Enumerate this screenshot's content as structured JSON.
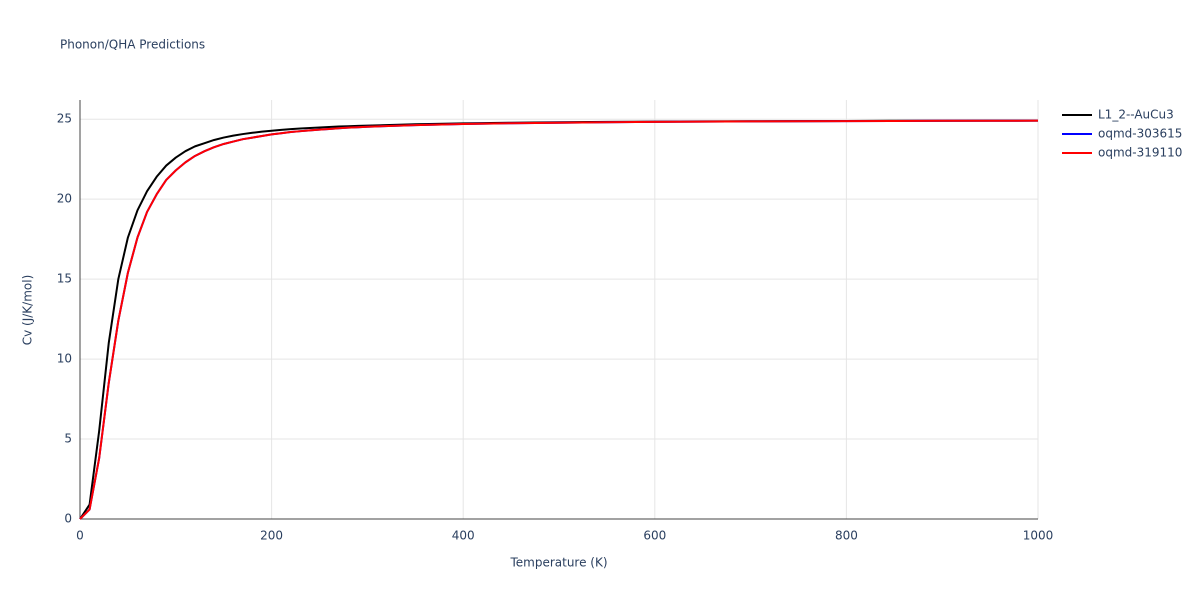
{
  "chart_data": {
    "type": "line",
    "title": "Phonon/QHA Predictions",
    "x_label": "Temperature (K)",
    "y_label": "Cv (J/K/mol)",
    "x": [
      0,
      10,
      20,
      30,
      40,
      50,
      60,
      70,
      80,
      90,
      100,
      110,
      120,
      130,
      140,
      150,
      160,
      170,
      180,
      190,
      200,
      210,
      220,
      230,
      240,
      250,
      260,
      270,
      280,
      290,
      300,
      350,
      400,
      450,
      500,
      550,
      600,
      650,
      700,
      750,
      800,
      850,
      900,
      950,
      1000
    ],
    "series": [
      {
        "name": "L1_2--AuCu3",
        "color": "#000000",
        "values": [
          0,
          0.9,
          5.5,
          11,
          15,
          17.6,
          19.3,
          20.5,
          21.4,
          22.1,
          22.6,
          23.0,
          23.3,
          23.5,
          23.7,
          23.85,
          23.97,
          24.07,
          24.15,
          24.22,
          24.28,
          24.33,
          24.38,
          24.42,
          24.45,
          24.48,
          24.51,
          24.54,
          24.56,
          24.58,
          24.6,
          24.68,
          24.74,
          24.78,
          24.81,
          24.83,
          24.85,
          24.86,
          24.87,
          24.88,
          24.89,
          24.9,
          24.9,
          24.91,
          24.91
        ]
      },
      {
        "name": "oqmd-303615",
        "color": "#0000ff",
        "values": [
          0,
          0.6,
          3.8,
          8.5,
          12.4,
          15.4,
          17.6,
          19.2,
          20.3,
          21.2,
          21.8,
          22.3,
          22.7,
          23.0,
          23.25,
          23.45,
          23.6,
          23.75,
          23.85,
          23.95,
          24.05,
          24.12,
          24.2,
          24.25,
          24.3,
          24.35,
          24.39,
          24.43,
          24.47,
          24.5,
          24.53,
          24.63,
          24.7,
          24.75,
          24.78,
          24.81,
          24.83,
          24.85,
          24.86,
          24.87,
          24.88,
          24.89,
          24.9,
          24.9,
          24.91
        ]
      },
      {
        "name": "oqmd-319110",
        "color": "#ff0000",
        "values": [
          0,
          0.6,
          3.8,
          8.5,
          12.4,
          15.4,
          17.6,
          19.2,
          20.3,
          21.2,
          21.8,
          22.3,
          22.7,
          23.0,
          23.25,
          23.45,
          23.6,
          23.75,
          23.85,
          23.95,
          24.05,
          24.12,
          24.2,
          24.25,
          24.3,
          24.35,
          24.39,
          24.43,
          24.47,
          24.5,
          24.53,
          24.63,
          24.7,
          24.75,
          24.78,
          24.81,
          24.83,
          24.85,
          24.86,
          24.87,
          24.88,
          24.89,
          24.9,
          24.9,
          24.91
        ]
      }
    ],
    "xlim": [
      0,
      1000
    ],
    "ylim": [
      0,
      26.2
    ],
    "xticks": [
      0,
      200,
      400,
      600,
      800,
      1000
    ],
    "yticks": [
      0,
      5,
      10,
      15,
      20,
      25
    ],
    "grid": true,
    "legend": "right"
  }
}
